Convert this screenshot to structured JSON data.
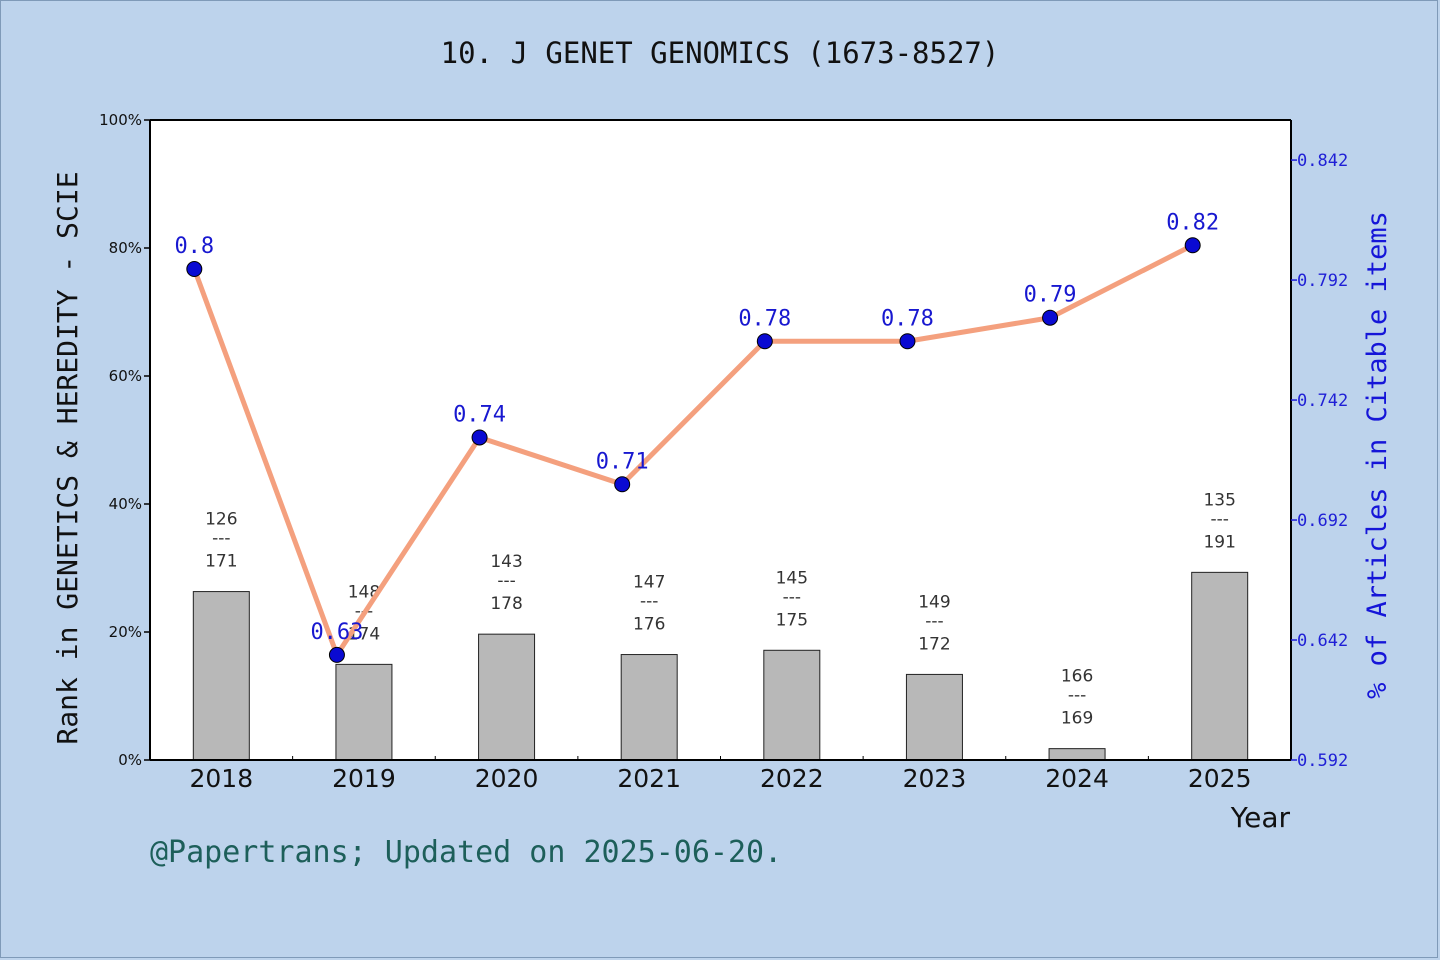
{
  "title": "10. J GENET GENOMICS (1673-8527)",
  "footer": "@Papertrans; Updated on 2025-06-20.",
  "chart_data": {
    "type": "bar+line",
    "categories": [
      "2018",
      "2019",
      "2020",
      "2021",
      "2022",
      "2023",
      "2024",
      "2025"
    ],
    "xlabel": "Year",
    "ylabel_left": "Rank in GENETICS & HEREDITY - SCIE",
    "ylabel_right": "% of Articles in Citable items",
    "ylim_left": [
      0,
      100
    ],
    "yticks_left": [
      "0%",
      "20%",
      "40%",
      "60%",
      "80%",
      "100%"
    ],
    "ylim_right": [
      0.592,
      0.8587
    ],
    "yticks_right": [
      "0.592",
      "0.642",
      "0.692",
      "0.742",
      "0.792",
      "0.842"
    ],
    "bars": {
      "rank": [
        126,
        148,
        143,
        147,
        145,
        149,
        166,
        135
      ],
      "total": [
        171,
        174,
        178,
        176,
        175,
        172,
        169,
        191
      ],
      "separator": "---",
      "color": "#b8b8b8"
    },
    "line": {
      "values": [
        0.8,
        0.63,
        0.74,
        0.71,
        0.78,
        0.78,
        0.79,
        0.82
      ],
      "plot_values": [
        0.7966,
        0.6358,
        0.7264,
        0.7069,
        0.7665,
        0.7665,
        0.7763,
        0.8065
      ],
      "labels": [
        "0.8",
        "0.63",
        "0.74",
        "0.71",
        "0.78",
        "0.78",
        "0.79",
        "0.82"
      ],
      "line_color": "#f4a07e",
      "marker_color": "#0a0ad2"
    }
  }
}
